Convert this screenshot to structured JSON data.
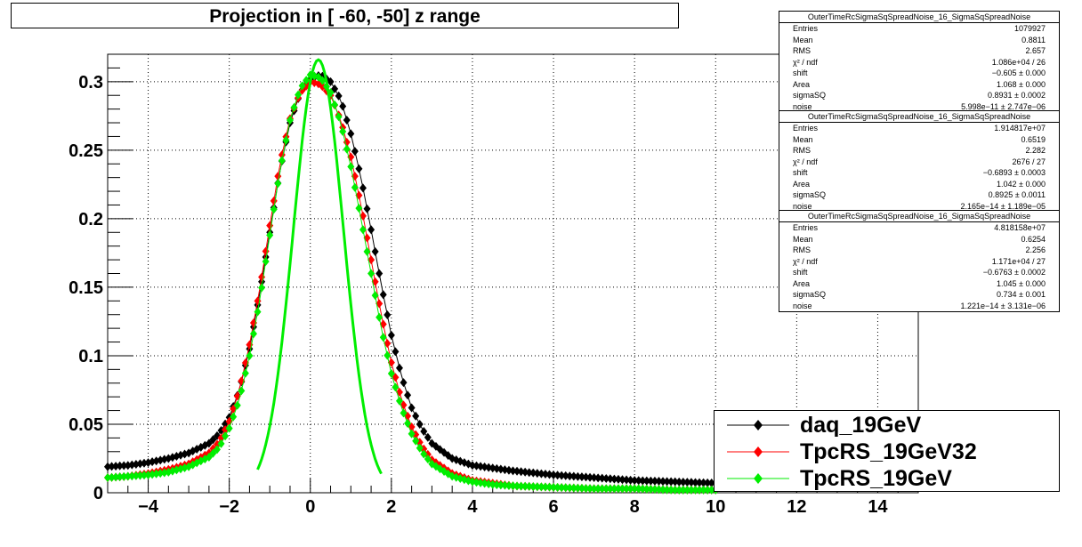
{
  "title": "Projection in [ -60, -50] z range",
  "chart_data": {
    "type": "scatter",
    "xlim": [
      -5,
      15
    ],
    "ylim": [
      0,
      0.32
    ],
    "x_ticks": [
      "−4",
      "−2",
      "0",
      "2",
      "4",
      "6",
      "8",
      "10",
      "12",
      "14"
    ],
    "x_tick_values": [
      -4,
      -2,
      0,
      2,
      4,
      6,
      8,
      10,
      12,
      14
    ],
    "y_ticks": [
      "0",
      "0.05",
      "0.1",
      "0.15",
      "0.2",
      "0.25",
      "0.3"
    ],
    "y_tick_values": [
      0,
      0.05,
      0.1,
      0.15,
      0.2,
      0.25,
      0.3
    ],
    "grid": true,
    "legend_position": "bottom-right",
    "series": [
      {
        "name": "daq_19GeV",
        "color": "#000000",
        "marker": "diamond",
        "x": [
          -5.0,
          -4.5,
          -4.0,
          -3.5,
          -3.0,
          -2.5,
          -2.25,
          -2.0,
          -1.75,
          -1.5,
          -1.25,
          -1.0,
          -0.75,
          -0.5,
          -0.25,
          0.0,
          0.25,
          0.5,
          0.75,
          1.0,
          1.25,
          1.5,
          1.75,
          2.0,
          2.25,
          2.5,
          2.75,
          3.0,
          3.5,
          4.0,
          4.5,
          5.0,
          6.0,
          7.0,
          8.0,
          9.0,
          10.0
        ],
        "y": [
          0.019,
          0.02,
          0.022,
          0.025,
          0.029,
          0.036,
          0.043,
          0.055,
          0.075,
          0.105,
          0.145,
          0.19,
          0.235,
          0.27,
          0.292,
          0.302,
          0.305,
          0.3,
          0.287,
          0.262,
          0.23,
          0.192,
          0.152,
          0.115,
          0.085,
          0.062,
          0.047,
          0.036,
          0.025,
          0.02,
          0.018,
          0.016,
          0.013,
          0.011,
          0.009,
          0.008,
          0.007
        ]
      },
      {
        "name": "TpcRS_19GeV32",
        "color": "#ff0000",
        "marker": "diamond",
        "x": [
          -5.0,
          -4.5,
          -4.0,
          -3.5,
          -3.0,
          -2.5,
          -2.25,
          -2.0,
          -1.75,
          -1.5,
          -1.25,
          -1.0,
          -0.75,
          -0.5,
          -0.25,
          0.0,
          0.25,
          0.5,
          0.75,
          1.0,
          1.25,
          1.5,
          1.75,
          2.0,
          2.25,
          2.5,
          2.75,
          3.0,
          3.5,
          4.0,
          4.5,
          5.0,
          6.0,
          7.0,
          8.0,
          9.0,
          10.0
        ],
        "y": [
          0.011,
          0.012,
          0.014,
          0.017,
          0.021,
          0.029,
          0.037,
          0.052,
          0.075,
          0.108,
          0.148,
          0.195,
          0.24,
          0.273,
          0.292,
          0.3,
          0.298,
          0.29,
          0.272,
          0.245,
          0.21,
          0.17,
          0.13,
          0.095,
          0.068,
          0.048,
          0.034,
          0.024,
          0.014,
          0.009,
          0.007,
          0.005,
          0.004,
          0.003,
          0.003,
          0.002,
          0.002
        ]
      },
      {
        "name": "TpcRS_19GeV",
        "color": "#00ee00",
        "marker": "diamond",
        "x": [
          -5.0,
          -4.5,
          -4.0,
          -3.5,
          -3.0,
          -2.5,
          -2.25,
          -2.0,
          -1.75,
          -1.5,
          -1.25,
          -1.0,
          -0.75,
          -0.5,
          -0.25,
          0.0,
          0.25,
          0.5,
          0.75,
          1.0,
          1.25,
          1.5,
          1.75,
          2.0,
          2.25,
          2.5,
          2.75,
          3.0,
          3.5,
          4.0,
          4.5,
          5.0,
          6.0,
          7.0,
          8.0,
          9.0,
          10.0
        ],
        "y": [
          0.011,
          0.012,
          0.013,
          0.015,
          0.019,
          0.026,
          0.033,
          0.047,
          0.068,
          0.1,
          0.14,
          0.188,
          0.235,
          0.272,
          0.295,
          0.305,
          0.303,
          0.292,
          0.27,
          0.238,
          0.2,
          0.16,
          0.12,
          0.087,
          0.062,
          0.043,
          0.03,
          0.021,
          0.012,
          0.008,
          0.006,
          0.005,
          0.004,
          0.003,
          0.003,
          0.002,
          0.002
        ]
      }
    ],
    "fit_curve": {
      "color": "#00ee00",
      "peak_x": 0.2,
      "peak_y": 0.316
    }
  },
  "stats_boxes": [
    {
      "name": "OuterTimeRcSigmaSqSpreadNoise_16_SigmaSqSpreadNoise",
      "rows": [
        {
          "label": "Entries",
          "value": "1079927"
        },
        {
          "label": "Mean",
          "value": "0.8811"
        },
        {
          "label": "RMS",
          "value": "2.657"
        },
        {
          "label": "χ² / ndf",
          "value": "1.086e+04 / 26"
        },
        {
          "label": "shift",
          "value": "−0.605 ± 0.000"
        },
        {
          "label": "Area",
          "value": "1.068 ± 0.000"
        },
        {
          "label": "sigmaSQ",
          "value": "0.8931 ± 0.0002"
        },
        {
          "label": "noise",
          "value": "5.998e−11 ± 2.747e−06"
        }
      ]
    },
    {
      "name": "OuterTimeRcSigmaSqSpreadNoise_16_SigmaSqSpreadNoise",
      "rows": [
        {
          "label": "Entries",
          "value": "1.914817e+07"
        },
        {
          "label": "Mean",
          "value": "0.6519"
        },
        {
          "label": "RMS",
          "value": "2.282"
        },
        {
          "label": "χ² / ndf",
          "value": "2676 / 27"
        },
        {
          "label": "shift",
          "value": "−0.6893 ± 0.0003"
        },
        {
          "label": "Area",
          "value": "1.042 ± 0.000"
        },
        {
          "label": "sigmaSQ",
          "value": "0.8925 ± 0.0011"
        },
        {
          "label": "noise",
          "value": "2.165e−14 ± 1.189e−05"
        }
      ]
    },
    {
      "name": "OuterTimeRcSigmaSqSpreadNoise_16_SigmaSqSpreadNoise",
      "rows": [
        {
          "label": "Entries",
          "value": "4.818158e+07"
        },
        {
          "label": "Mean",
          "value": "0.6254"
        },
        {
          "label": "RMS",
          "value": "2.256"
        },
        {
          "label": "χ² / ndf",
          "value": "1.171e+04 / 27"
        },
        {
          "label": "shift",
          "value": "−0.6763 ± 0.0002"
        },
        {
          "label": "Area",
          "value": "1.045 ± 0.000"
        },
        {
          "label": "sigmaSQ",
          "value": "0.734 ± 0.001"
        },
        {
          "label": "noise",
          "value": "1.221e−14 ± 3.131e−06"
        }
      ]
    }
  ],
  "legend": [
    {
      "label": "daq_19GeV",
      "color": "#000000"
    },
    {
      "label": "TpcRS_19GeV32",
      "color": "#ff0000"
    },
    {
      "label": "TpcRS_19GeV",
      "color": "#00ee00"
    }
  ]
}
